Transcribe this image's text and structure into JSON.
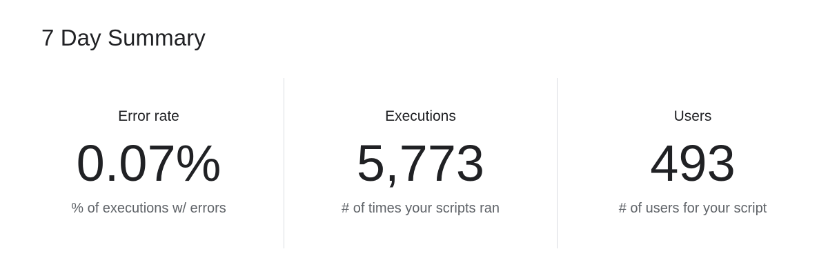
{
  "title": "7 Day Summary",
  "metrics": [
    {
      "label": "Error rate",
      "value": "0.07%",
      "description": "% of executions w/ errors"
    },
    {
      "label": "Executions",
      "value": "5,773",
      "description": "# of times your scripts ran"
    },
    {
      "label": "Users",
      "value": "493",
      "description": "# of users for your script"
    }
  ],
  "colors": {
    "text_primary": "#202124",
    "text_secondary": "#5f6368",
    "divider": "#dadce0",
    "background": "#ffffff"
  }
}
